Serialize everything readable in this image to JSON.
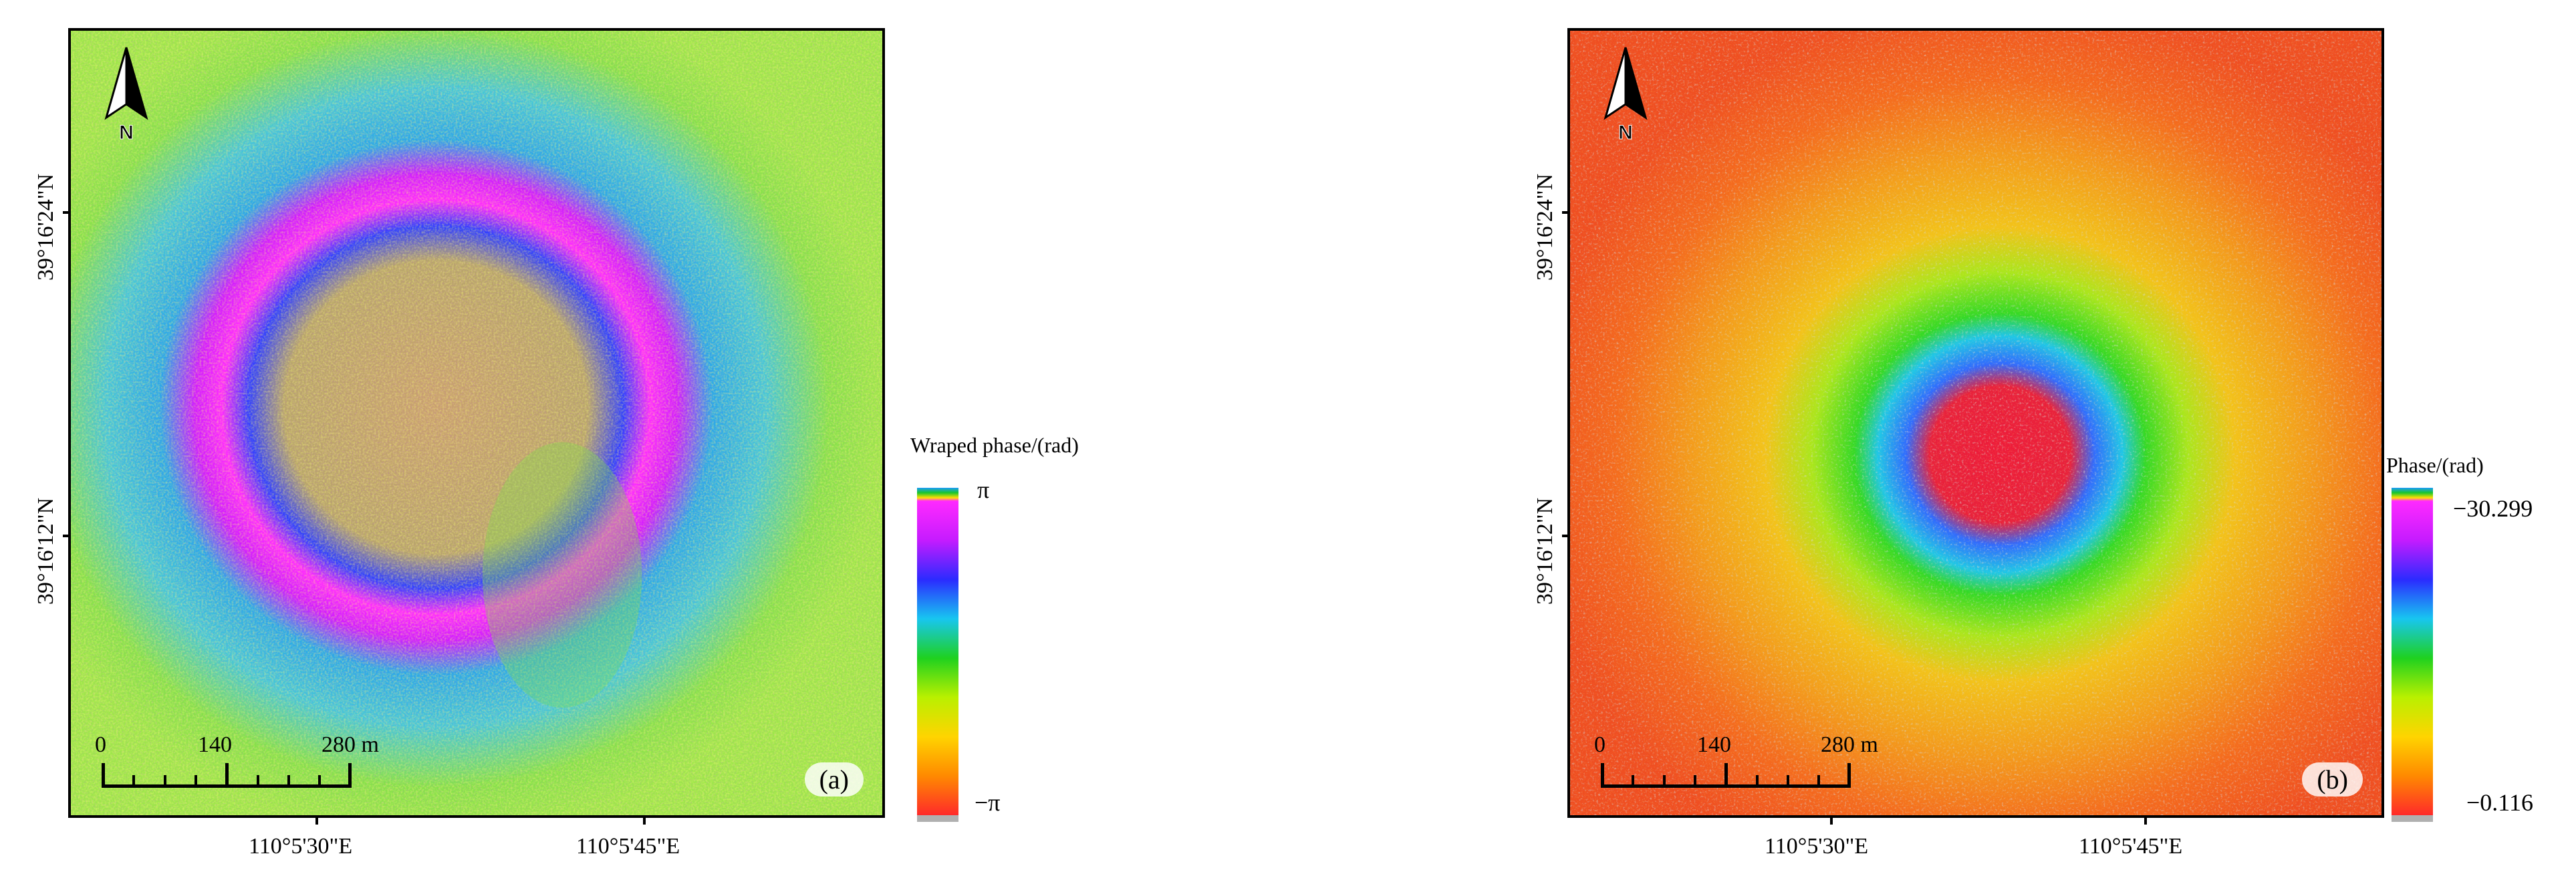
{
  "panels": [
    {
      "id": "a",
      "tag": "(a)",
      "legend": {
        "title": "Wraped phase/(rad)",
        "max_label": "π",
        "min_label": "−π"
      },
      "lat_labels": [
        "39°16'24\"N",
        "39°16'12\"N"
      ],
      "lon_labels": [
        "110°5'30\"E",
        "110°5'45\"E"
      ],
      "scale": {
        "labels": [
          "0",
          "140",
          "280 m"
        ]
      },
      "north_label": "N",
      "colors": {
        "background": "#7fe24a",
        "ring_outer": "#2aa9e8",
        "ring_magenta": "#ff2aff",
        "ring_blue": "#3b4fff",
        "core": "#c79a6a"
      }
    },
    {
      "id": "b",
      "tag": "(b)",
      "legend": {
        "title": "Phase/(rad)",
        "max_label": "−30.299",
        "min_label": "−0.116"
      },
      "lat_labels": [
        "39°16'24\"N",
        "39°16'12\"N"
      ],
      "lon_labels": [
        "110°5'30\"E",
        "110°5'45\"E"
      ],
      "scale": {
        "labels": [
          "0",
          "140",
          "280 m"
        ]
      },
      "north_label": "N",
      "colors": {
        "background": "#f46a1e",
        "halo": "#f2c21a",
        "ring_green": "#33d926",
        "ring_blue": "#2f6bff",
        "core": "#ee1b3a",
        "noise": "#b0b0b0"
      }
    }
  ],
  "legend_gradient": [
    "#ff2a2a",
    "#ff8a00",
    "#ffd400",
    "#b9f000",
    "#1fd11f",
    "#18c6f0",
    "#2b2bff",
    "#c51bff",
    "#ff2aff"
  ]
}
